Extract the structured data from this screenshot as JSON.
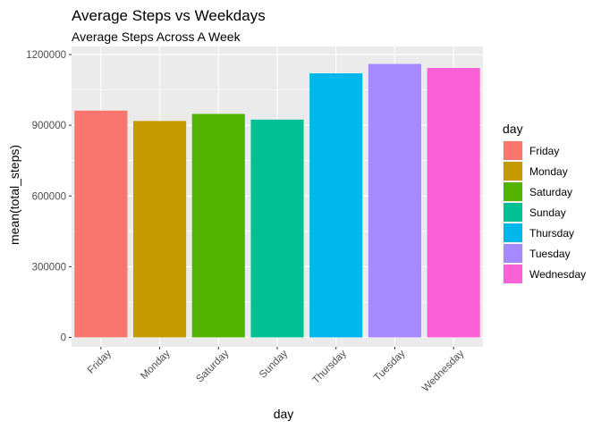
{
  "chart_data": {
    "type": "bar",
    "title": "Average Steps vs Weekdays",
    "subtitle": "Average Steps Across A Week",
    "xlabel": "day",
    "ylabel": "mean(total_steps)",
    "categories": [
      "Friday",
      "Monday",
      "Saturday",
      "Sunday",
      "Thursday",
      "Tuesday",
      "Wednesday"
    ],
    "values": [
      962000,
      918000,
      948000,
      924000,
      1120000,
      1160000,
      1143000
    ],
    "colors": [
      "#F8766D",
      "#C49A00",
      "#53B400",
      "#00C094",
      "#00B6EB",
      "#A58AFF",
      "#FB61D7"
    ],
    "ylim": [
      0,
      1200000
    ],
    "y_ticks": [
      0,
      300000,
      600000,
      900000,
      1200000
    ],
    "y_tick_labels": [
      "0",
      "300000",
      "600000",
      "900000",
      "1200000"
    ],
    "grid": true,
    "panel_background": "#EBEBEB",
    "grid_color": "#FFFFFF",
    "legend": {
      "title": "day",
      "position": "right",
      "entries": [
        "Friday",
        "Monday",
        "Saturday",
        "Sunday",
        "Thursday",
        "Tuesday",
        "Wednesday"
      ]
    }
  }
}
